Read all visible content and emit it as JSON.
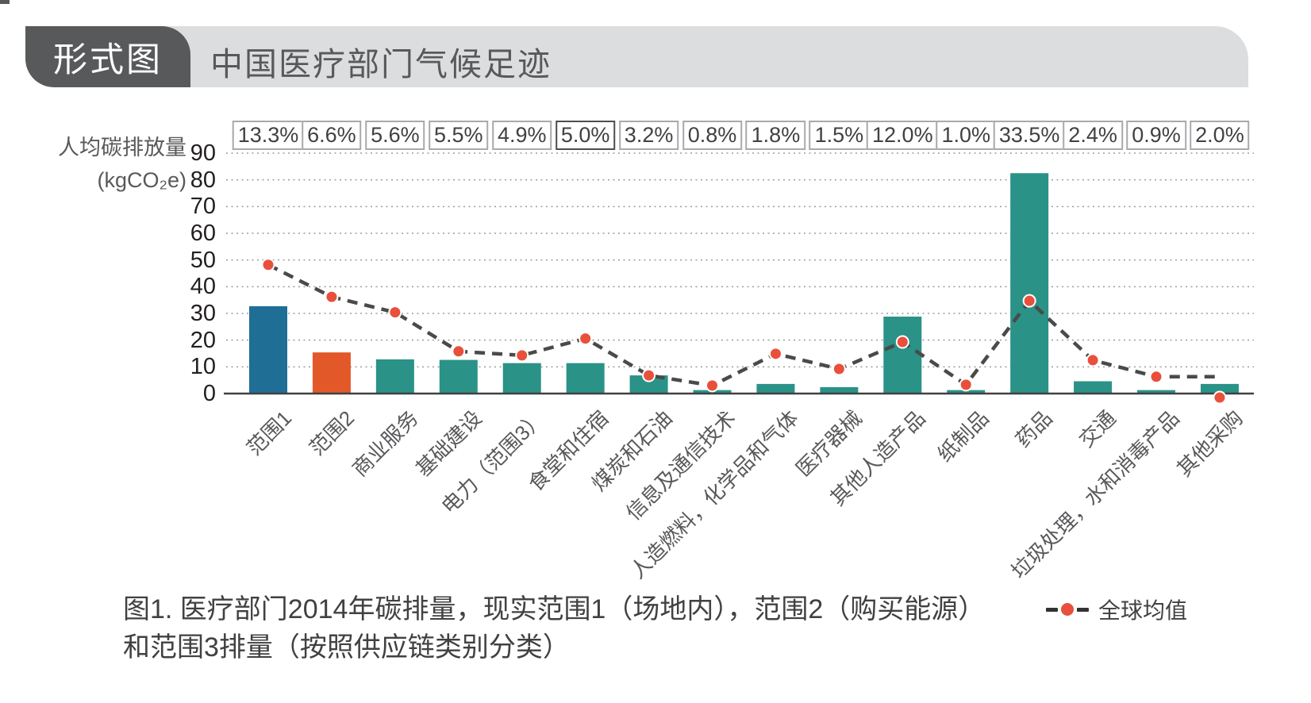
{
  "header": {
    "badge": "形式图",
    "title": "中国医疗部门气候足迹",
    "badge_bg": "#58595B",
    "bar_bg": "#DCDDDE"
  },
  "chart_data": {
    "type": "bar",
    "title": "中国医疗部门气候足迹",
    "ylabel_line1": "人均碳排放量",
    "ylabel_line2": "(kgCO₂e)",
    "ylim": [
      0,
      90
    ],
    "yticks": [
      90,
      80,
      70,
      60,
      50,
      40,
      30,
      20,
      10,
      0
    ],
    "grid": "dotted-horizontal",
    "categories": [
      "范围1",
      "范围2",
      "商业服务",
      "基础建设",
      "电力（范围3）",
      "食堂和住宿",
      "煤炭和石油",
      "信息及通信技术",
      "人造燃料，化学品和气体",
      "医疗器械",
      "其他人造产品",
      "纸制品",
      "药品",
      "交通",
      "垃圾处理，水和消毒产品",
      "其他采购"
    ],
    "percent_labels": [
      "13.3%",
      "6.6%",
      "5.6%",
      "5.5%",
      "4.9%",
      "5.0%",
      "3.2%",
      "0.8%",
      "1.8%",
      "1.5%",
      "12.0%",
      "1.0%",
      "33.5%",
      "2.4%",
      "0.9%",
      "2.0%"
    ],
    "percent_highlight_index": 5,
    "bars": {
      "values": [
        32.7,
        15.4,
        12.8,
        12.6,
        11.4,
        11.4,
        6.8,
        1.3,
        3.6,
        2.4,
        28.8,
        1.3,
        82.5,
        4.6,
        1.3,
        3.6
      ],
      "colors": [
        "#1F6E96",
        "#E25829",
        "#2A9287",
        "#2A9287",
        "#2A9287",
        "#2A9287",
        "#2A9287",
        "#2A9287",
        "#2A9287",
        "#2A9287",
        "#2A9287",
        "#2A9287",
        "#2A9287",
        "#2A9287",
        "#2A9287",
        "#2A9287"
      ]
    },
    "global_average": {
      "label": "全球均值",
      "marker_values": [
        48.2,
        36.2,
        30.4,
        15.8,
        14.3,
        20.6,
        6.8,
        3.0,
        14.9,
        9.2,
        19.3,
        3.3,
        34.7,
        12.5,
        6.3,
        -1.5
      ],
      "line_values": [
        48.2,
        36.2,
        30.4,
        15.8,
        14.3,
        20.6,
        6.8,
        3.0,
        14.9,
        9.2,
        19.3,
        3.3,
        34.7,
        12.5,
        6.3,
        6.3
      ],
      "marker_color": "#E8503B",
      "line_color": "#4A4A4A",
      "legend_position": "bottom-right"
    },
    "axis_color": "#414042",
    "grid_color": "#9B9B9B"
  },
  "caption": {
    "line1": "图1. 医疗部门2014年碳排量，现实范围1（场地内），范围2（购买能源）",
    "line2": "和范围3排量（按照供应链类别分类）"
  }
}
